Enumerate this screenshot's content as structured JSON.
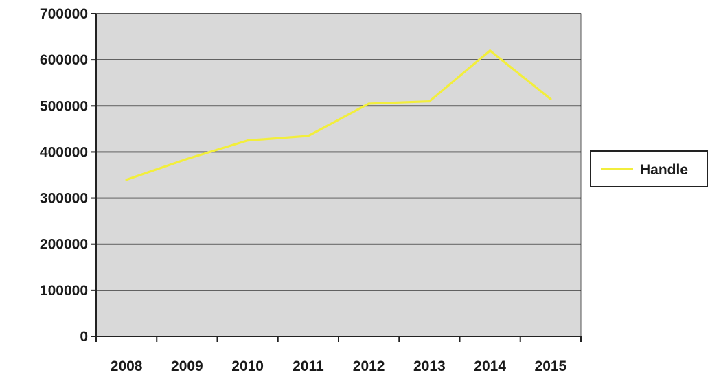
{
  "chart_data": {
    "type": "line",
    "title": "",
    "xlabel": "",
    "ylabel": "",
    "categories": [
      "2008",
      "2009",
      "2010",
      "2011",
      "2012",
      "2013",
      "2014",
      "2015"
    ],
    "y_ticks": [
      "700000",
      "600000",
      "500000",
      "400000",
      "300000",
      "200000",
      "100000",
      "0"
    ],
    "ylim": [
      0,
      700000
    ],
    "grid": true,
    "legend_position": "right",
    "series": [
      {
        "name": "Handle",
        "color": "#f2ee3c",
        "values": [
          340000,
          385000,
          425000,
          435000,
          505000,
          510000,
          620000,
          515000
        ]
      }
    ],
    "plot_background": "#d9d9d9"
  }
}
